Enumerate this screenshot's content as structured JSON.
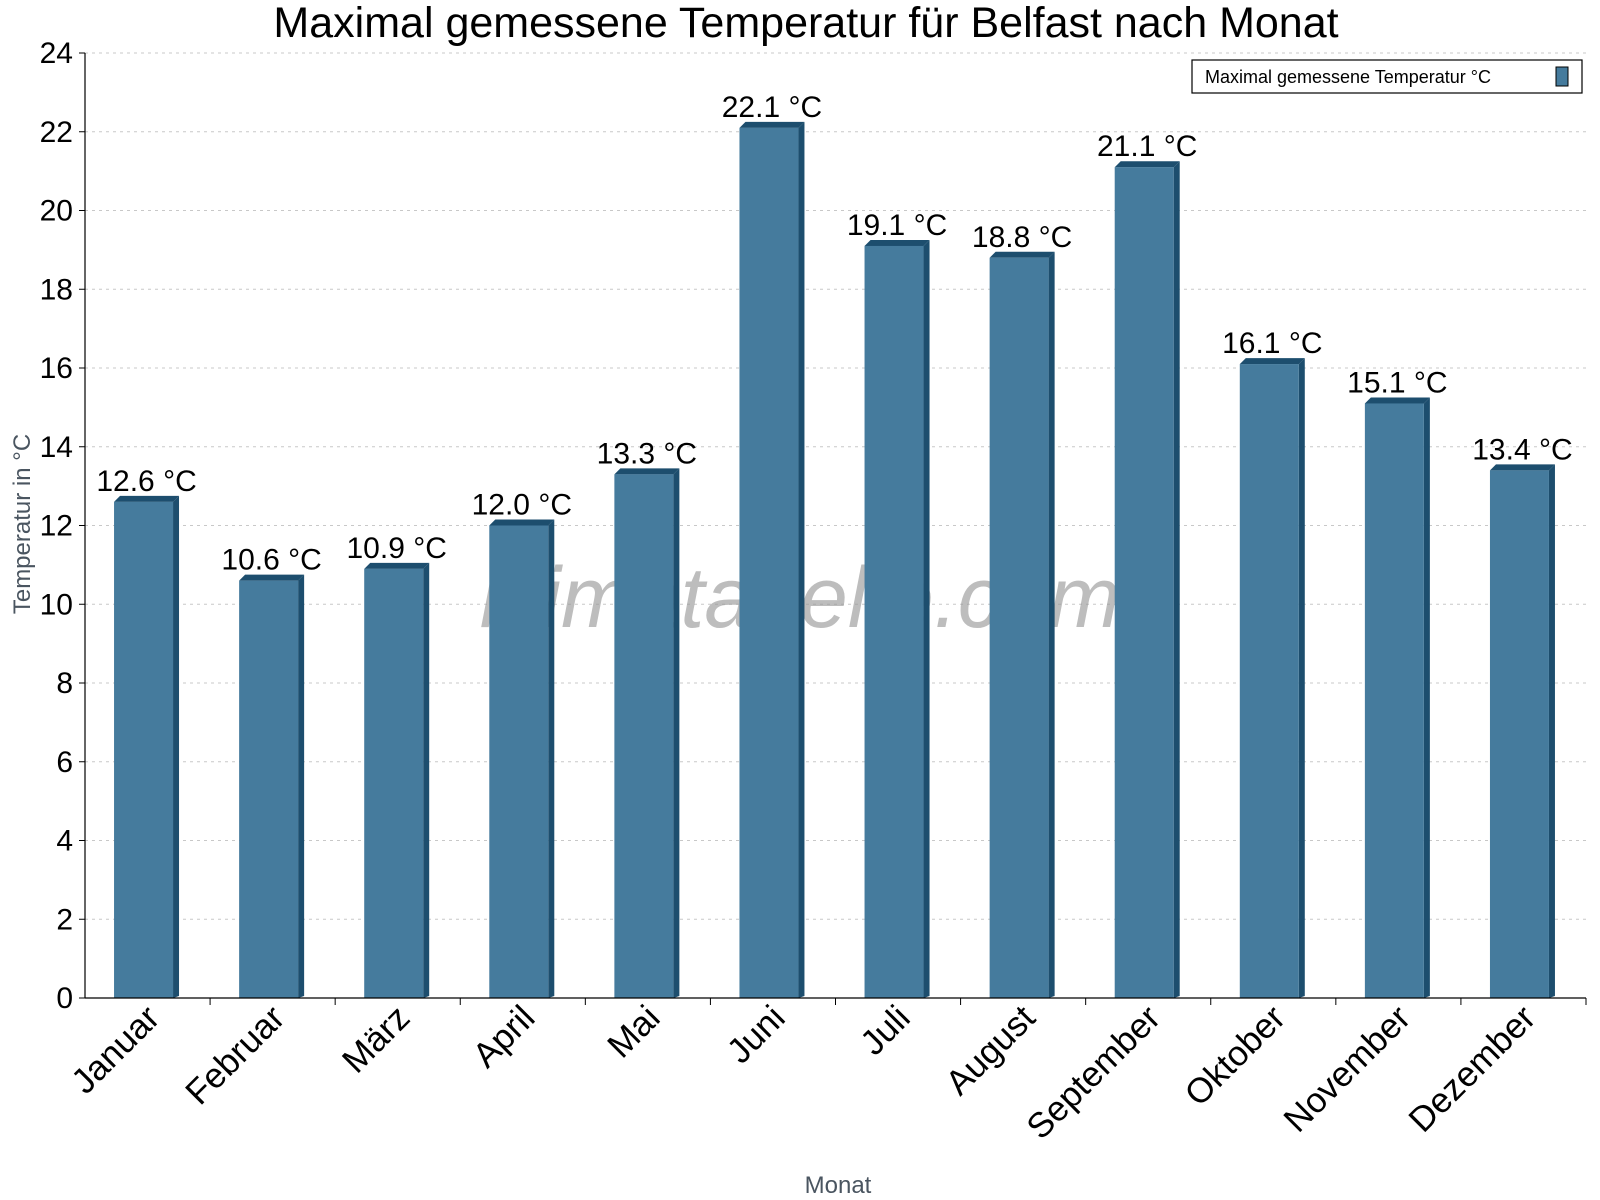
{
  "chart_data": {
    "type": "bar",
    "title": "Maximal gemessene Temperatur für Belfast nach Monat",
    "xlabel": "Monat",
    "ylabel": "Temperatur in °C",
    "categories": [
      "Januar",
      "Februar",
      "März",
      "April",
      "Mai",
      "Juni",
      "Juli",
      "August",
      "September",
      "Oktober",
      "November",
      "Dezember"
    ],
    "series": [
      {
        "name": "Maximal gemessene Temperatur °C",
        "values": [
          12.6,
          10.6,
          10.9,
          12.0,
          13.3,
          22.1,
          19.1,
          18.8,
          21.1,
          16.1,
          15.1,
          13.4
        ],
        "labels": [
          "12.6 °C",
          "10.6 °C",
          "10.9 °C",
          "12.0 °C",
          "13.3 °C",
          "22.1 °C",
          "19.1 °C",
          "18.8 °C",
          "21.1 °C",
          "16.1 °C",
          "15.1 °C",
          "13.4 °C"
        ]
      }
    ],
    "ylim": [
      0,
      24
    ],
    "yticks": [
      0,
      2,
      4,
      6,
      8,
      10,
      12,
      14,
      16,
      18,
      20,
      22,
      24
    ],
    "grid": true,
    "legend_position": "top-right",
    "watermark": "klimatabelle.com",
    "colors": {
      "bar": "#457b9d",
      "bar_shade": "#1d4e6e",
      "grid": "#c8c8c8",
      "axis": "#000000"
    }
  }
}
